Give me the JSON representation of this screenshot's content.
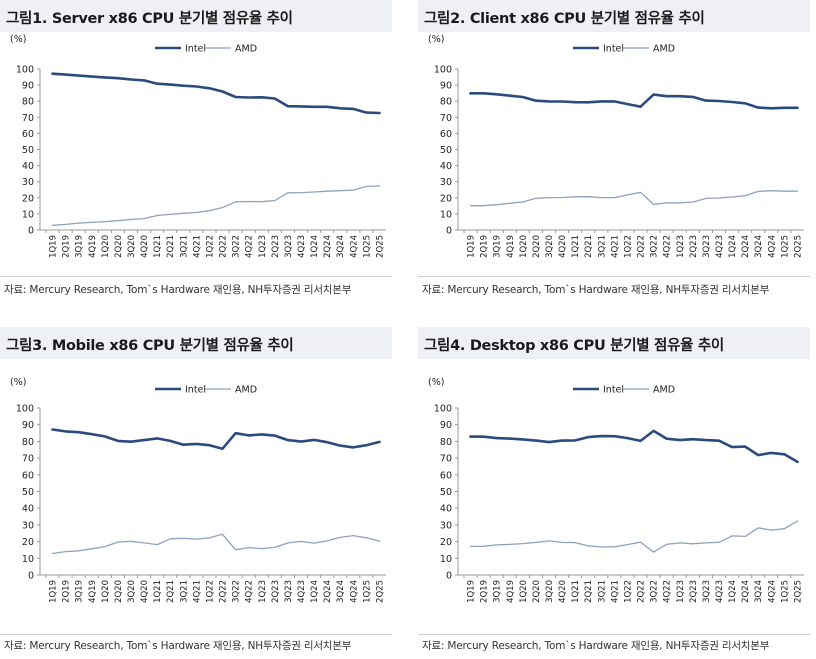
{
  "colors": {
    "intel": "#2b4a7e",
    "amd": "#8fa2bf",
    "title_bg": "#eef0f5"
  },
  "panels": [
    {
      "title": "그림1. Server x86 CPU 분기별 점유율 추이",
      "source": "자료: Mercury Research, Tom`s Hardware 재인용, NH투자증권 리서치본부",
      "chart_data": {
        "type": "line",
        "unit_label": "(%)",
        "ylim": [
          0,
          100
        ],
        "yticks": [
          0,
          10,
          20,
          30,
          40,
          50,
          60,
          70,
          80,
          90,
          100
        ],
        "legend_position": "top-center",
        "grid": false,
        "categories": [
          "1Q19",
          "2Q19",
          "3Q19",
          "4Q19",
          "1Q20",
          "2Q20",
          "3Q20",
          "4Q20",
          "1Q21",
          "2Q21",
          "3Q21",
          "4Q21",
          "1Q22",
          "2Q22",
          "3Q22",
          "4Q22",
          "1Q23",
          "2Q23",
          "3Q23",
          "4Q23",
          "1Q24",
          "2Q24",
          "3Q24",
          "4Q24",
          "1Q25",
          "2Q25"
        ],
        "series": [
          {
            "name": "Intel",
            "values": [
              97.1,
              96.5,
              95.9,
              95.3,
              94.8,
              94.3,
              93.5,
              92.9,
              90.9,
              90.3,
              89.6,
              89.1,
              88.0,
              86.0,
              82.6,
              82.3,
              82.4,
              81.7,
              76.9,
              76.8,
              76.5,
              76.5,
              75.6,
              75.2,
              72.9,
              72.7
            ]
          },
          {
            "name": "AMD",
            "values": [
              2.9,
              3.5,
              4.3,
              4.7,
              5.2,
              5.8,
              6.6,
              7.1,
              9.0,
              9.7,
              10.4,
              10.9,
              12.0,
              14.0,
              17.5,
              17.7,
              17.6,
              18.3,
              23.1,
              23.2,
              23.6,
              24.1,
              24.4,
              24.8,
              27.1,
              27.3
            ]
          }
        ]
      }
    },
    {
      "title": "그림2. Client x86 CPU 분기별 점유율 추이",
      "source": "자료: Mercury Research, Tom`s Hardware 재인용, NH투자증권 리서치본부",
      "chart_data": {
        "type": "line",
        "unit_label": "(%)",
        "ylim": [
          0,
          100
        ],
        "yticks": [
          0,
          10,
          20,
          30,
          40,
          50,
          60,
          70,
          80,
          90,
          100
        ],
        "legend_position": "top-center",
        "grid": false,
        "categories": [
          "1Q19",
          "2Q19",
          "3Q19",
          "4Q19",
          "1Q20",
          "2Q20",
          "3Q20",
          "4Q20",
          "1Q21",
          "2Q21",
          "3Q21",
          "4Q21",
          "1Q22",
          "2Q22",
          "3Q22",
          "4Q22",
          "1Q23",
          "2Q23",
          "3Q23",
          "4Q23",
          "1Q24",
          "2Q24",
          "3Q24",
          "4Q24",
          "1Q25",
          "2Q25"
        ],
        "series": [
          {
            "name": "Intel",
            "values": [
              84.9,
              84.9,
              84.3,
              83.4,
              82.6,
              80.3,
              79.9,
              79.8,
              79.4,
              79.3,
              79.9,
              79.9,
              78.2,
              76.6,
              84.1,
              83.1,
              83.1,
              82.7,
              80.4,
              80.1,
              79.5,
              78.7,
              76.0,
              75.6,
              75.9,
              75.9
            ]
          },
          {
            "name": "AMD",
            "values": [
              15.1,
              15.1,
              15.7,
              16.6,
              17.4,
              19.7,
              20.1,
              20.2,
              20.6,
              20.7,
              20.1,
              20.1,
              21.8,
              23.4,
              15.9,
              16.9,
              16.9,
              17.3,
              19.6,
              19.9,
              20.5,
              21.3,
              24.0,
              24.4,
              24.1,
              24.1
            ]
          }
        ]
      }
    },
    {
      "title": "그림3. Mobile x86 CPU 분기별 점유율 추이",
      "source": "자료: Mercury Research, Tom`s Hardware 재인용, NH투자증권 리서치본부",
      "chart_data": {
        "type": "line",
        "unit_label": "(%)",
        "ylim": [
          0,
          100
        ],
        "yticks": [
          0,
          10,
          20,
          30,
          40,
          50,
          60,
          70,
          80,
          90,
          100
        ],
        "legend_position": "top-center",
        "grid": false,
        "categories": [
          "1Q19",
          "2Q19",
          "3Q19",
          "4Q19",
          "1Q20",
          "2Q20",
          "3Q20",
          "4Q20",
          "1Q21",
          "2Q21",
          "3Q21",
          "4Q21",
          "1Q22",
          "2Q22",
          "3Q22",
          "4Q22",
          "1Q23",
          "2Q23",
          "3Q23",
          "4Q23",
          "1Q24",
          "2Q24",
          "3Q24",
          "4Q24",
          "1Q25",
          "2Q25"
        ],
        "series": [
          {
            "name": "Intel",
            "values": [
              87.1,
              86.0,
              85.5,
              84.3,
              83.0,
              80.3,
              79.8,
              80.8,
              81.8,
              80.3,
              78.0,
              78.5,
              77.7,
              75.6,
              84.9,
              83.6,
              84.2,
              83.5,
              80.8,
              79.9,
              80.9,
              79.5,
              77.5,
              76.4,
              77.7,
              79.7
            ]
          },
          {
            "name": "AMD",
            "values": [
              12.9,
              14.0,
              14.5,
              15.7,
              17.0,
              19.7,
              20.2,
              19.2,
              18.2,
              21.7,
              22.0,
              21.5,
              22.3,
              24.4,
              15.1,
              16.4,
              15.8,
              16.5,
              19.2,
              20.1,
              19.1,
              20.5,
              22.5,
              23.6,
              22.3,
              20.3
            ]
          }
        ]
      }
    },
    {
      "title": "그림4. Desktop x86 CPU 분기별 점유율 추이",
      "source": "자료: Mercury Research, Tom`s Hardware 재인용, NH투자증권 리서치본부",
      "chart_data": {
        "type": "line",
        "unit_label": "(%)",
        "ylim": [
          0,
          100
        ],
        "yticks": [
          0,
          10,
          20,
          30,
          40,
          50,
          60,
          70,
          80,
          90,
          100
        ],
        "legend_position": "top-center",
        "grid": false,
        "categories": [
          "1Q19",
          "2Q19",
          "3Q19",
          "4Q19",
          "1Q20",
          "2Q20",
          "3Q20",
          "4Q20",
          "1Q21",
          "2Q21",
          "3Q21",
          "4Q21",
          "1Q22",
          "2Q22",
          "3Q22",
          "4Q22",
          "1Q23",
          "2Q23",
          "3Q23",
          "4Q23",
          "1Q24",
          "2Q24",
          "3Q24",
          "4Q24",
          "1Q25",
          "2Q25"
        ],
        "series": [
          {
            "name": "Intel",
            "values": [
              82.9,
              82.8,
              82.0,
              81.7,
              81.2,
              80.5,
              79.6,
              80.5,
              80.6,
              82.6,
              83.2,
              83.1,
              82.0,
              80.3,
              86.3,
              81.6,
              80.8,
              81.3,
              80.8,
              80.4,
              76.6,
              76.9,
              71.8,
              73.1,
              72.3,
              67.7
            ]
          },
          {
            "name": "AMD",
            "values": [
              17.1,
              17.2,
              18.0,
              18.3,
              18.8,
              19.5,
              20.4,
              19.5,
              19.4,
              17.4,
              16.8,
              16.9,
              18.2,
              19.7,
              13.7,
              18.4,
              19.2,
              18.7,
              19.2,
              19.6,
              23.4,
              23.1,
              28.2,
              26.9,
              27.7,
              32.3
            ]
          }
        ]
      }
    }
  ]
}
